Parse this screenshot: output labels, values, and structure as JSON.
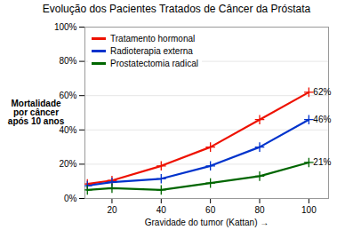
{
  "chart_data": {
    "type": "line",
    "title": "Evolução dos Pacientes Tratados de Câncer da Próstata",
    "xlabel": "Gravidade do tumor (Kattan)",
    "ylabel": "Mortalidade\npor câncer\napós 10 anos",
    "x": [
      10,
      20,
      40,
      60,
      80,
      100
    ],
    "series": [
      {
        "name": "Tratamento hormonal",
        "color": "#ee1100",
        "values": [
          0.085,
          0.105,
          0.19,
          0.3,
          0.46,
          0.62
        ]
      },
      {
        "name": "Radioterapia externa",
        "color": "#0033cc",
        "values": [
          0.075,
          0.095,
          0.115,
          0.19,
          0.3,
          0.46
        ]
      },
      {
        "name": "Prostatectomia radical",
        "color": "#006600",
        "values": [
          0.05,
          0.06,
          0.05,
          0.09,
          0.13,
          0.21
        ]
      }
    ],
    "annotations": [
      {
        "text": "62%",
        "x": 100,
        "y": 0.62
      },
      {
        "text": "46%",
        "x": 100,
        "y": 0.46
      },
      {
        "text": "21%",
        "x": 100,
        "y": 0.21
      }
    ],
    "xlim": [
      9,
      108
    ],
    "xticks": [
      20,
      40,
      60,
      80,
      100
    ],
    "ylim": [
      0,
      1.0
    ],
    "yticks": [
      {
        "value": 0.0,
        "label": "0%"
      },
      {
        "value": 0.2,
        "label": "20%"
      },
      {
        "value": 0.4,
        "label": "40%"
      },
      {
        "value": 0.6,
        "label": "60%"
      },
      {
        "value": 0.8,
        "label": "80%"
      },
      {
        "value": 1.0,
        "label": "100%"
      }
    ],
    "grid": true,
    "legend": "upper left",
    "marker": "plus"
  }
}
